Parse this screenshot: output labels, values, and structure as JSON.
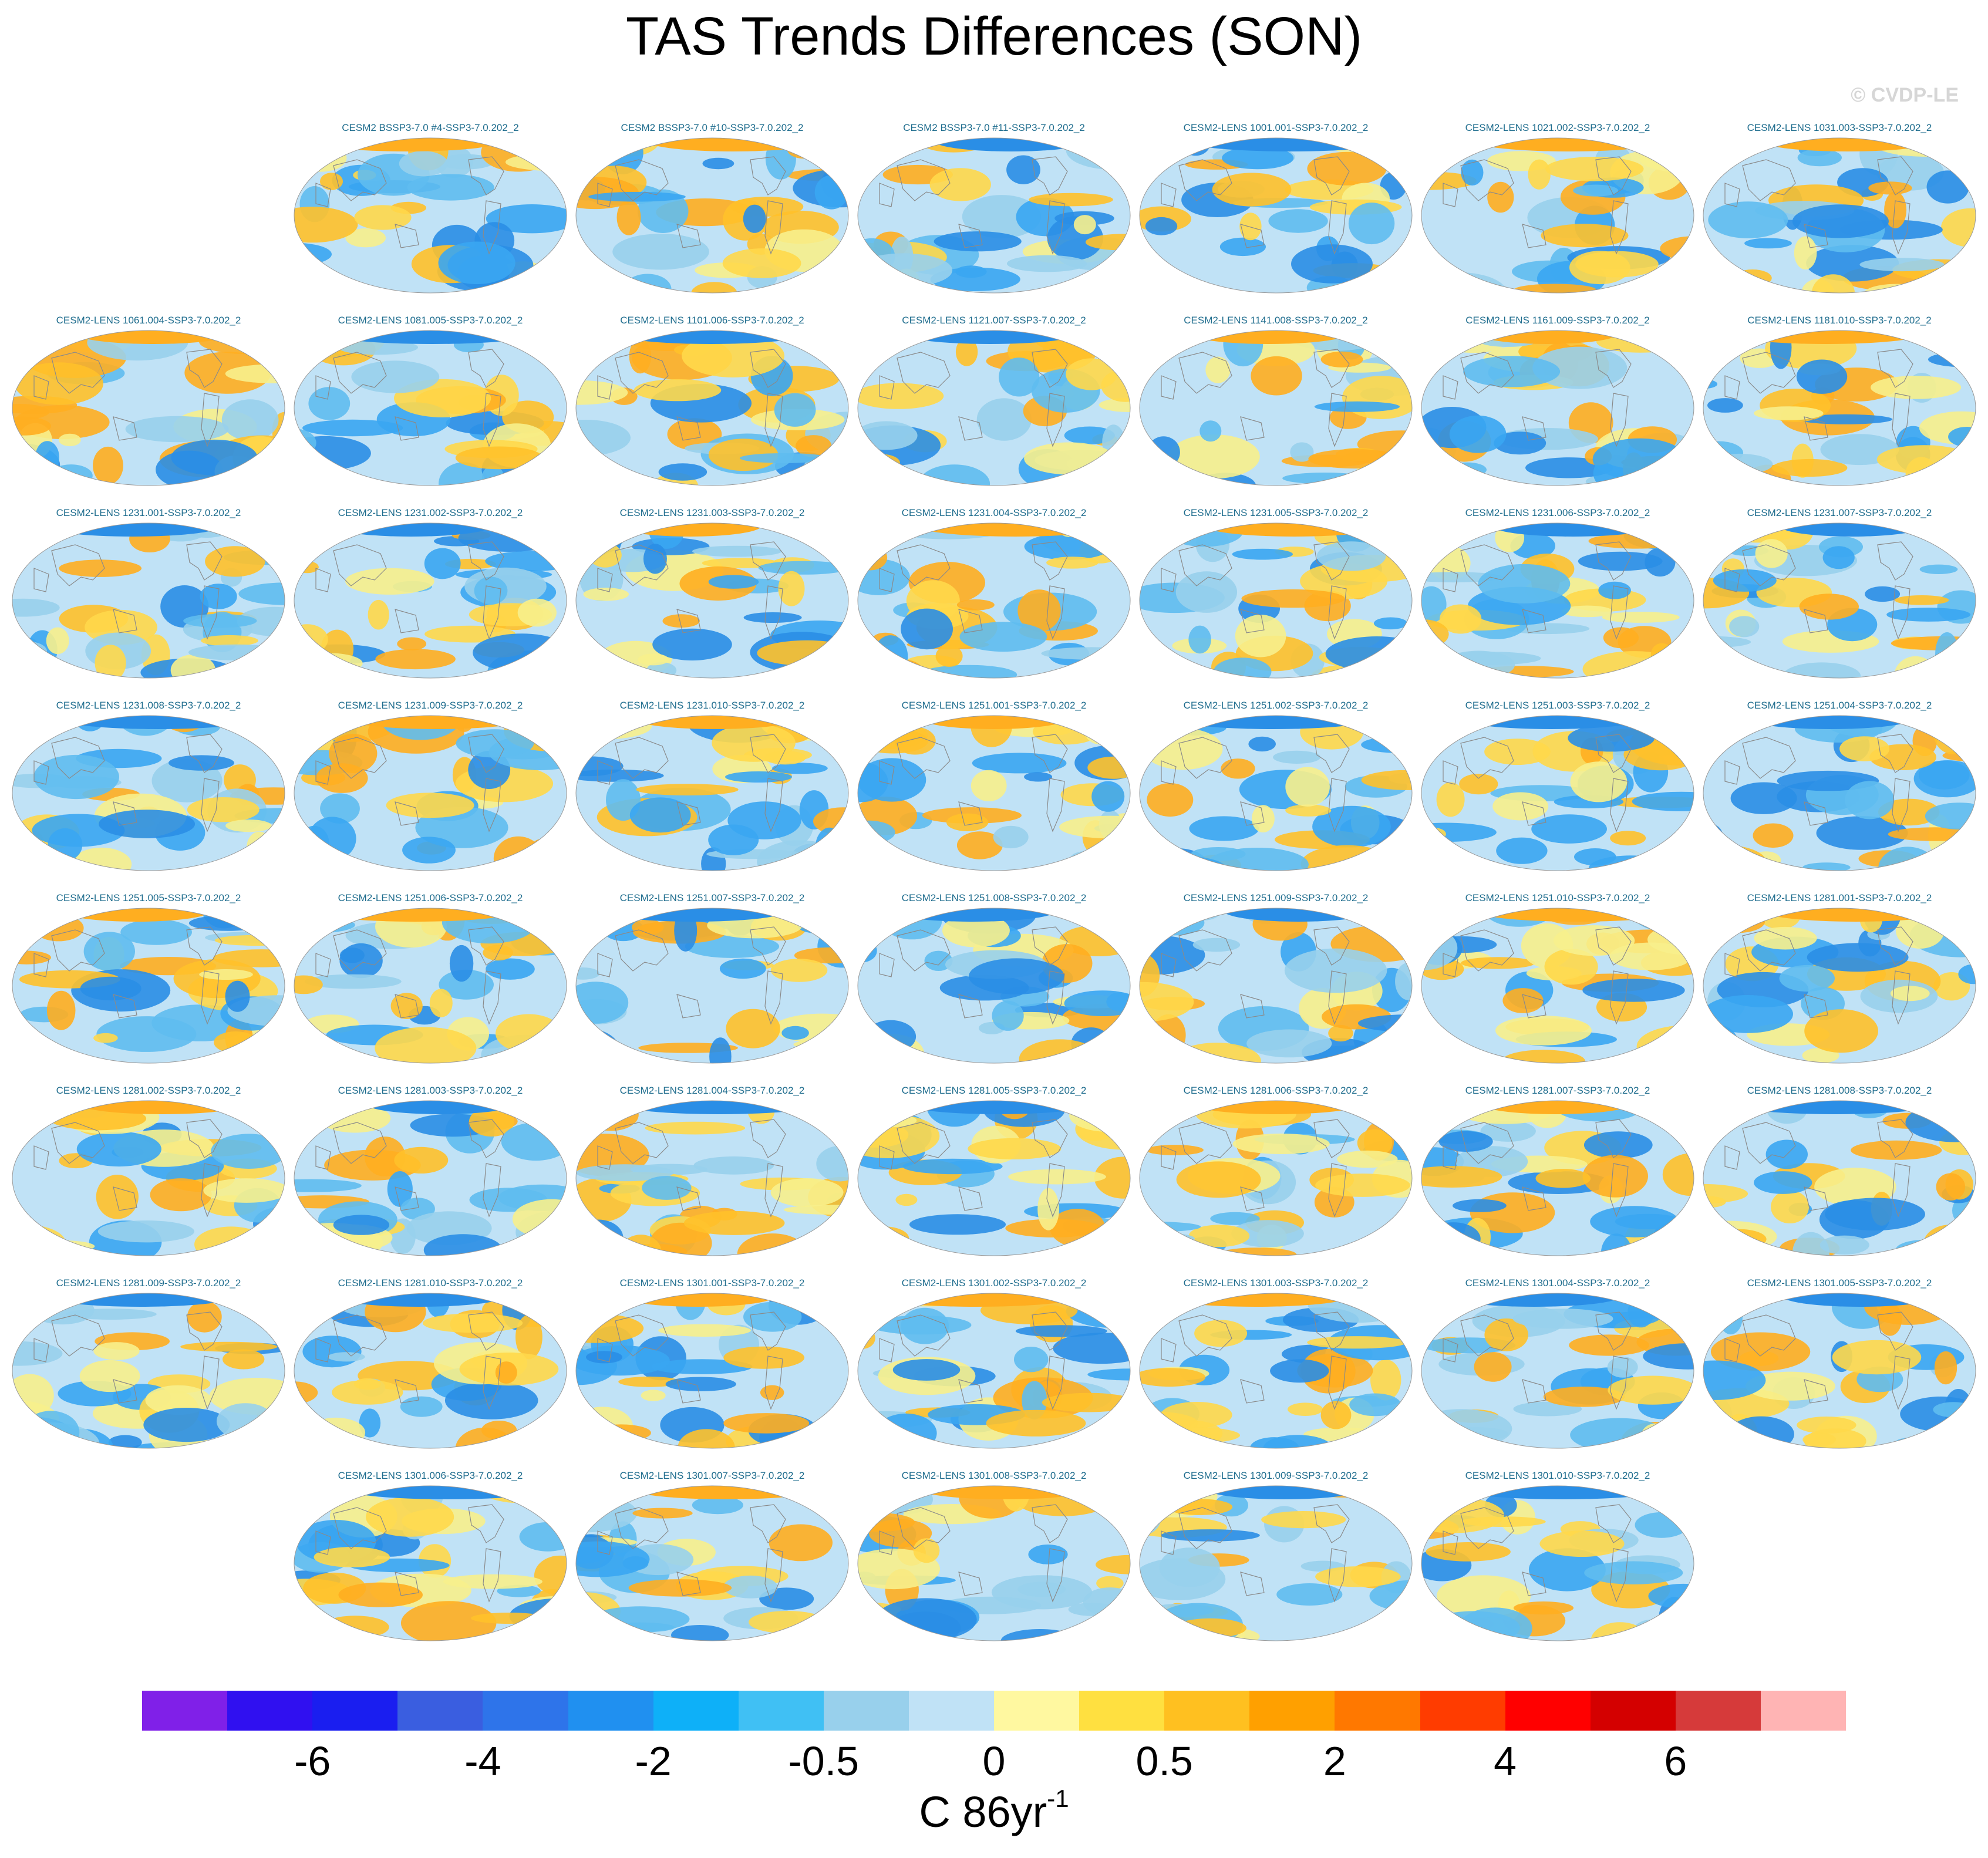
{
  "title": "TAS Trends Differences (SON)",
  "watermark": "© CVDP-LE",
  "chart_data": {
    "type": "heatmap",
    "title": "TAS Trends Differences (SON)",
    "projection": "global map panels (Robinson-like)",
    "units_base": "C 86yr",
    "units_exponent": "-1",
    "panel_grid": {
      "rows": 8,
      "columns": 7
    },
    "panels": [
      "CESM2 BSSP3-7.0 #4-SSP3-7.0.202_2",
      "CESM2 BSSP3-7.0 #10-SSP3-7.0.202_2",
      "CESM2 BSSP3-7.0 #11-SSP3-7.0.202_2",
      "CESM2-LENS 1001.001-SSP3-7.0.202_2",
      "CESM2-LENS 1021.002-SSP3-7.0.202_2",
      "CESM2-LENS 1031.003-SSP3-7.0.202_2",
      "CESM2-LENS 1061.004-SSP3-7.0.202_2",
      "CESM2-LENS 1081.005-SSP3-7.0.202_2",
      "CESM2-LENS 1101.006-SSP3-7.0.202_2",
      "CESM2-LENS 1121.007-SSP3-7.0.202_2",
      "CESM2-LENS 1141.008-SSP3-7.0.202_2",
      "CESM2-LENS 1161.009-SSP3-7.0.202_2",
      "CESM2-LENS 1181.010-SSP3-7.0.202_2",
      "CESM2-LENS 1231.001-SSP3-7.0.202_2",
      "CESM2-LENS 1231.002-SSP3-7.0.202_2",
      "CESM2-LENS 1231.003-SSP3-7.0.202_2",
      "CESM2-LENS 1231.004-SSP3-7.0.202_2",
      "CESM2-LENS 1231.005-SSP3-7.0.202_2",
      "CESM2-LENS 1231.006-SSP3-7.0.202_2",
      "CESM2-LENS 1231.007-SSP3-7.0.202_2",
      "CESM2-LENS 1231.008-SSP3-7.0.202_2",
      "CESM2-LENS 1231.009-SSP3-7.0.202_2",
      "CESM2-LENS 1231.010-SSP3-7.0.202_2",
      "CESM2-LENS 1251.001-SSP3-7.0.202_2",
      "CESM2-LENS 1251.002-SSP3-7.0.202_2",
      "CESM2-LENS 1251.003-SSP3-7.0.202_2",
      "CESM2-LENS 1251.004-SSP3-7.0.202_2",
      "CESM2-LENS 1251.005-SSP3-7.0.202_2",
      "CESM2-LENS 1251.006-SSP3-7.0.202_2",
      "CESM2-LENS 1251.007-SSP3-7.0.202_2",
      "CESM2-LENS 1251.008-SSP3-7.0.202_2",
      "CESM2-LENS 1251.009-SSP3-7.0.202_2",
      "CESM2-LENS 1251.010-SSP3-7.0.202_2",
      "CESM2-LENS 1281.001-SSP3-7.0.202_2",
      "CESM2-LENS 1281.002-SSP3-7.0.202_2",
      "CESM2-LENS 1281.003-SSP3-7.0.202_2",
      "CESM2-LENS 1281.004-SSP3-7.0.202_2",
      "CESM2-LENS 1281.005-SSP3-7.0.202_2",
      "CESM2-LENS 1281.006-SSP3-7.0.202_2",
      "CESM2-LENS 1281.007-SSP3-7.0.202_2",
      "CESM2-LENS 1281.008-SSP3-7.0.202_2",
      "CESM2-LENS 1281.009-SSP3-7.0.202_2",
      "CESM2-LENS 1281.010-SSP3-7.0.202_2",
      "CESM2-LENS 1301.001-SSP3-7.0.202_2",
      "CESM2-LENS 1301.002-SSP3-7.0.202_2",
      "CESM2-LENS 1301.003-SSP3-7.0.202_2",
      "CESM2-LENS 1301.004-SSP3-7.0.202_2",
      "CESM2-LENS 1301.005-SSP3-7.0.202_2",
      "CESM2-LENS 1301.006-SSP3-7.0.202_2",
      "CESM2-LENS 1301.007-SSP3-7.0.202_2",
      "CESM2-LENS 1301.008-SSP3-7.0.202_2",
      "CESM2-LENS 1301.009-SSP3-7.0.202_2",
      "CESM2-LENS 1301.010-SSP3-7.0.202_2"
    ],
    "colorbar": {
      "colors": [
        "#8020e8",
        "#3010f0",
        "#1a1ef0",
        "#3a5ee0",
        "#2e74ea",
        "#2090f0",
        "#0eb0f8",
        "#40c0f4",
        "#98d0ec",
        "#c0e2f6",
        "#fff8a0",
        "#ffe040",
        "#ffc020",
        "#ffa000",
        "#ff7800",
        "#ff3c00",
        "#ff0000",
        "#d40000",
        "#d63a3a",
        "#ffb4b4"
      ],
      "tick_labels": [
        "-6",
        "-4",
        "-2",
        "-0.5",
        "0",
        "0.5",
        "2",
        "4",
        "6"
      ],
      "tick_boundary_index": [
        2,
        4,
        6,
        8,
        10,
        12,
        14,
        16,
        18
      ]
    }
  }
}
